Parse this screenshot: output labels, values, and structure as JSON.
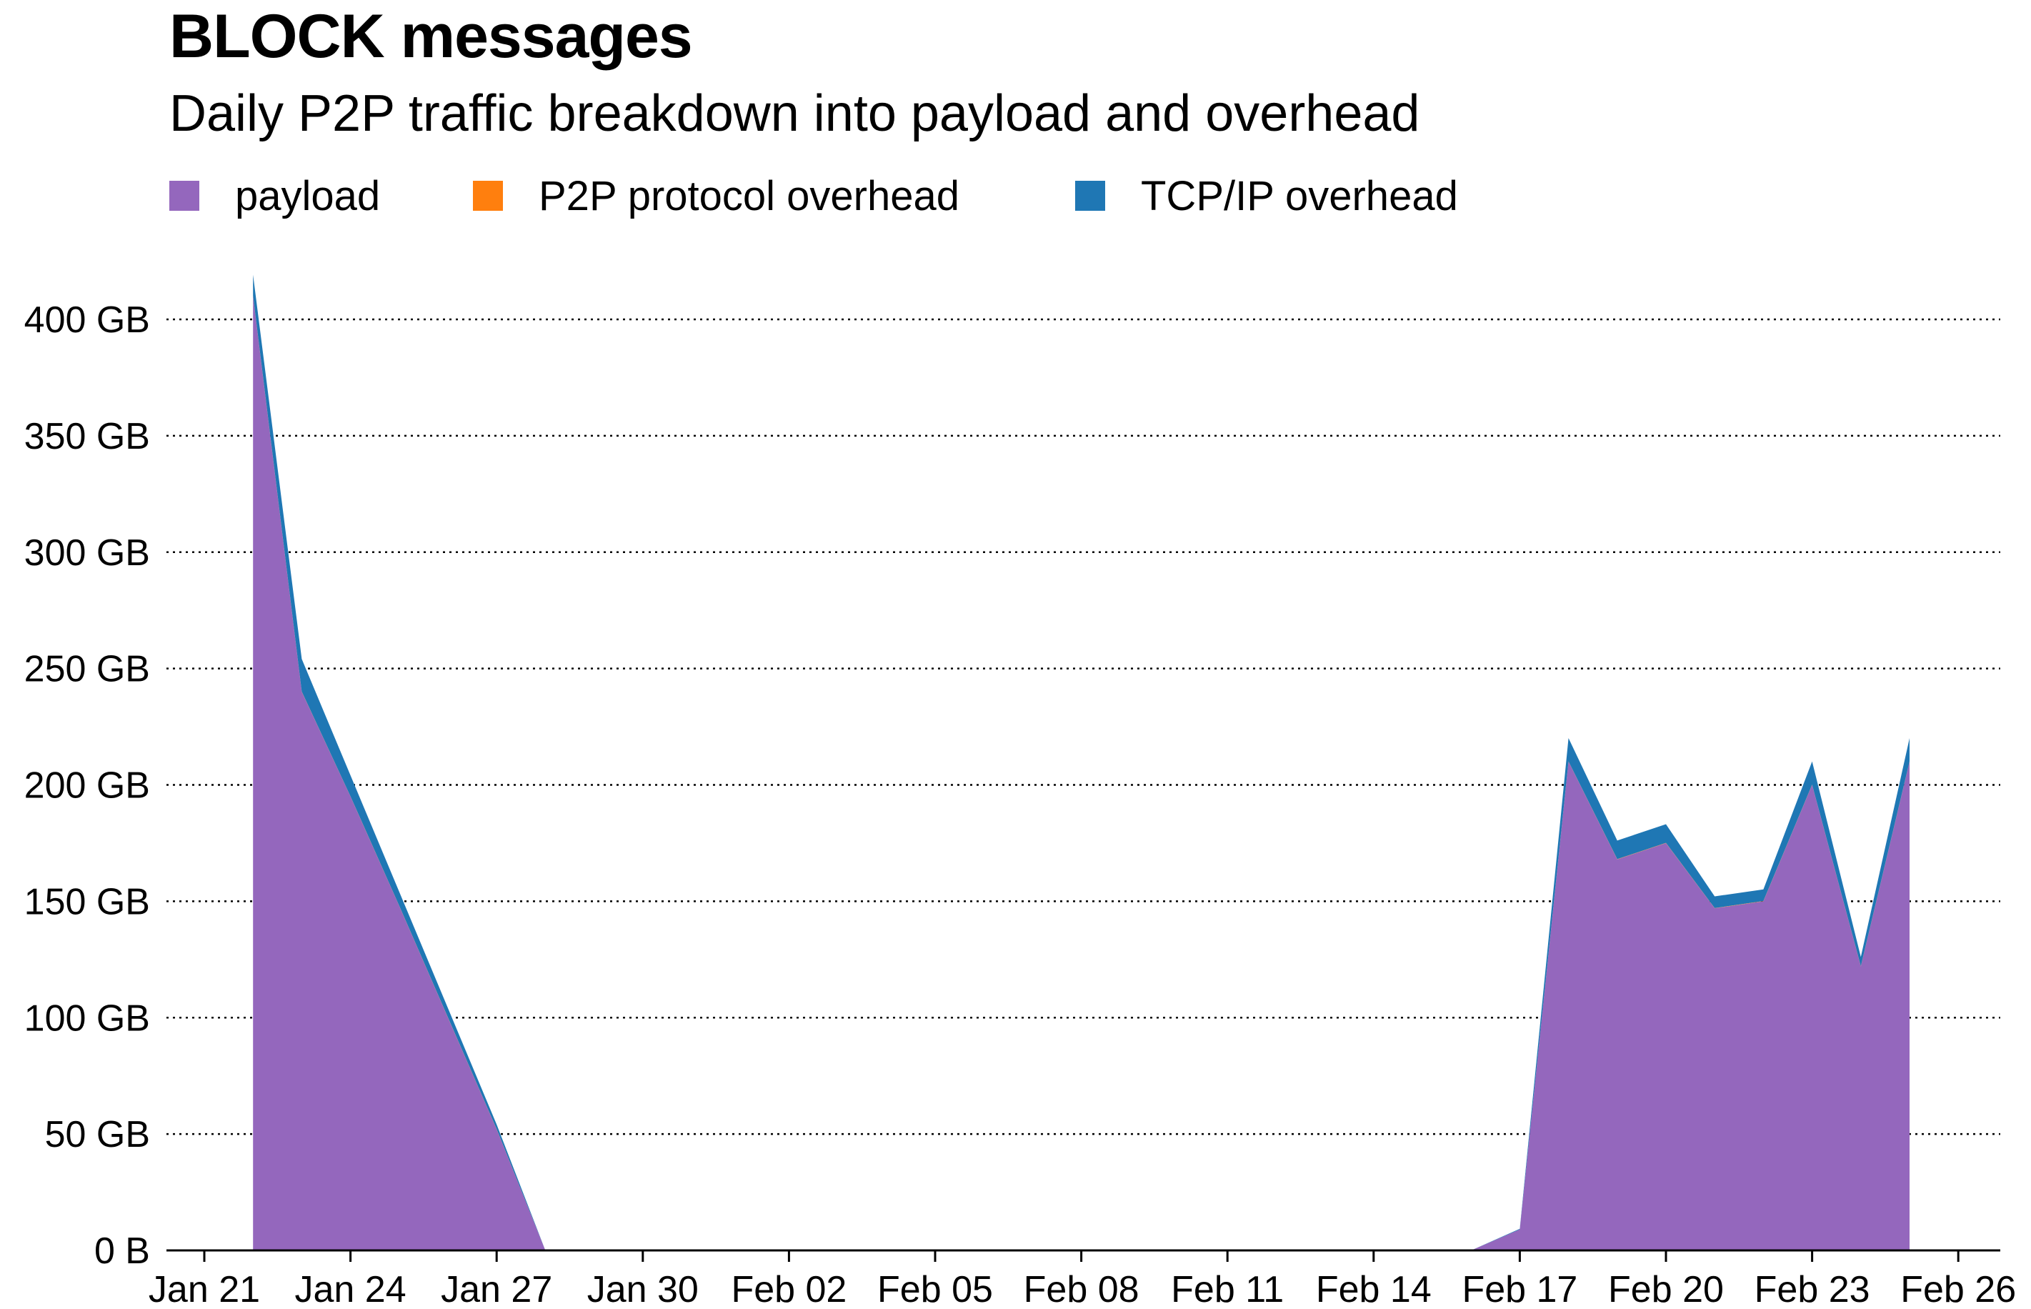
{
  "title": "BLOCK messages",
  "subtitle": "Daily P2P traffic breakdown into payload and overhead",
  "legend": [
    {
      "label": "payload",
      "color": "#9467bd"
    },
    {
      "label": "P2P protocol overhead",
      "color": "#ff7f0e"
    },
    {
      "label": "TCP/IP overhead",
      "color": "#1f77b4"
    }
  ],
  "chart_data": {
    "type": "area",
    "stacked": true,
    "ylim": [
      0,
      400
    ],
    "yunit": "GB",
    "y_ticks": [
      {
        "value": 0,
        "label": "0 B"
      },
      {
        "value": 50,
        "label": "50 GB"
      },
      {
        "value": 100,
        "label": "100 GB"
      },
      {
        "value": 150,
        "label": "150 GB"
      },
      {
        "value": 200,
        "label": "200 GB"
      },
      {
        "value": 250,
        "label": "250 GB"
      },
      {
        "value": 300,
        "label": "300 GB"
      },
      {
        "value": 350,
        "label": "350 GB"
      },
      {
        "value": 400,
        "label": "400 GB"
      }
    ],
    "x_ticks": [
      "Jan 21",
      "Jan 24",
      "Jan 27",
      "Jan 30",
      "Feb 02",
      "Feb 05",
      "Feb 08",
      "Feb 11",
      "Feb 14",
      "Feb 17",
      "Feb 20",
      "Feb 23",
      "Feb 26"
    ],
    "grid": "horizontal dotted",
    "legend_position": "top-left",
    "x": [
      "Jan 22",
      "Jan 23",
      "Jan 24",
      "Jan 25",
      "Jan 26",
      "Jan 27",
      "Jan 28",
      "Jan 29",
      "Jan 30",
      "Jan 31",
      "Feb 01",
      "Feb 02",
      "Feb 03",
      "Feb 04",
      "Feb 05",
      "Feb 06",
      "Feb 07",
      "Feb 08",
      "Feb 09",
      "Feb 10",
      "Feb 11",
      "Feb 12",
      "Feb 13",
      "Feb 14",
      "Feb 15",
      "Feb 16",
      "Feb 17",
      "Feb 18",
      "Feb 19",
      "Feb 20",
      "Feb 21",
      "Feb 22",
      "Feb 23",
      "Feb 24",
      "Feb 25"
    ],
    "series": [
      {
        "name": "payload",
        "color": "#9467bd",
        "values": [
          410,
          240,
          195,
          148,
          100,
          52,
          0,
          0,
          0,
          0,
          0,
          0,
          0,
          0,
          0,
          0,
          0,
          0,
          0,
          0,
          0,
          0,
          0,
          0,
          0,
          0,
          9,
          210,
          168,
          175,
          147,
          150,
          200,
          122,
          210
        ]
      },
      {
        "name": "P2P protocol overhead",
        "color": "#ff7f0e",
        "values": [
          0.2,
          0.1,
          0.1,
          0.1,
          0.1,
          0.1,
          0,
          0,
          0,
          0,
          0,
          0,
          0,
          0,
          0,
          0,
          0,
          0,
          0,
          0,
          0,
          0,
          0,
          0,
          0,
          0,
          0,
          0.1,
          0.1,
          0.1,
          0.1,
          0.1,
          0.1,
          0.1,
          0.1
        ]
      },
      {
        "name": "TCP/IP overhead",
        "color": "#1f77b4",
        "values": [
          9,
          14,
          9,
          6,
          4,
          2,
          0,
          0,
          0,
          0,
          0,
          0,
          0,
          0,
          0,
          0,
          0,
          0,
          0,
          0,
          0,
          0,
          0,
          0,
          0,
          0,
          0.3,
          10,
          8,
          8,
          5,
          5,
          10,
          4,
          10
        ]
      }
    ]
  }
}
